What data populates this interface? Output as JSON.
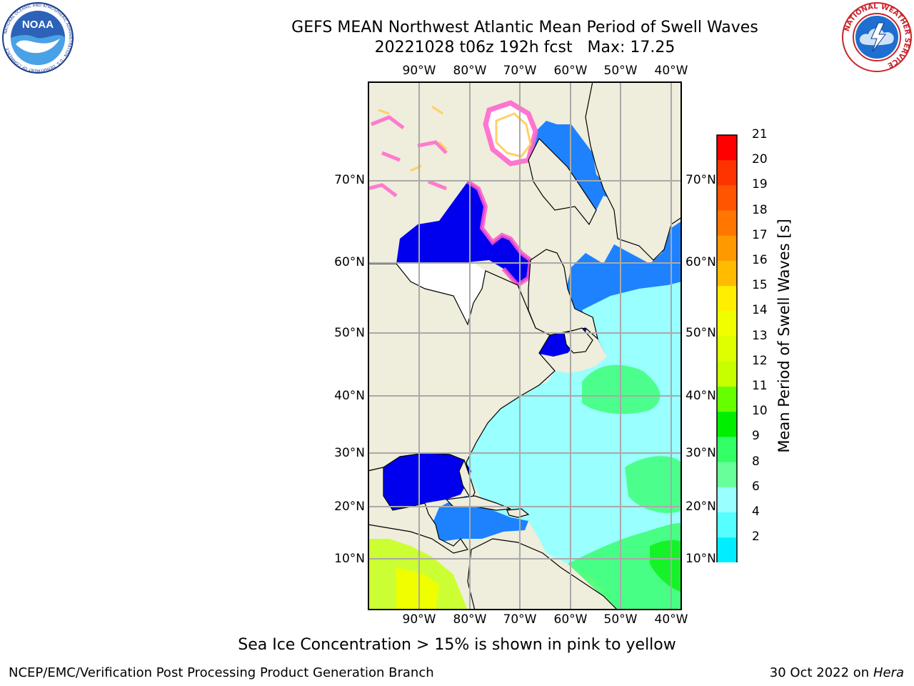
{
  "header": {
    "title": "GEFS MEAN Northwest Atlantic Mean Period of Swell Waves",
    "subtitle": "20221028 t06z 192h fcst   Max: 17.25"
  },
  "logos": {
    "left": {
      "name": "noaa-logo",
      "text": "NOAA",
      "ring_text": "NATIONAL OCEANIC AND ATMOSPHERIC ADMINISTRATION · U.S. DEPARTMENT OF COMMERCE"
    },
    "right": {
      "name": "nws-logo",
      "ring_text": "NATIONAL WEATHER SERVICE"
    }
  },
  "map": {
    "longitude_labels": [
      "90°W",
      "80°W",
      "70°W",
      "60°W",
      "50°W",
      "40°W"
    ],
    "latitude_labels": [
      "70°N",
      "60°N",
      "50°N",
      "40°N",
      "30°N",
      "20°N",
      "10°N"
    ],
    "colors": {
      "land": "#efeddb",
      "ocean_base": "#99ffff",
      "ice": "#ffffff",
      "grid": "#a9a9a9"
    }
  },
  "colorbar": {
    "label": "Mean Period of Swell Waves [s]",
    "ticks": [
      "21",
      "20",
      "19",
      "18",
      "17",
      "16",
      "15",
      "14",
      "13",
      "12",
      "11",
      "10",
      "9",
      "8",
      "6",
      "4",
      "2"
    ],
    "colors_top_to_bottom": [
      "#ff0000",
      "#ff3300",
      "#ff5500",
      "#ff7700",
      "#ff9900",
      "#ffbb00",
      "#ffee00",
      "#f0ff00",
      "#ddff00",
      "#c8ff00",
      "#66ff00",
      "#00ee00",
      "#33ff66",
      "#66ff99",
      "#99ffff",
      "#55ffff",
      "#00eeff",
      "#0077ff"
    ],
    "under_color": "#0000ee"
  },
  "caption": "Sea Ice Concentration > 15% is shown in pink to yellow",
  "footer": {
    "left": "NCEP/EMC/Verification Post Processing Product Generation Branch",
    "right_date": "30 Oct 2022 on ",
    "right_host": "Hera"
  }
}
